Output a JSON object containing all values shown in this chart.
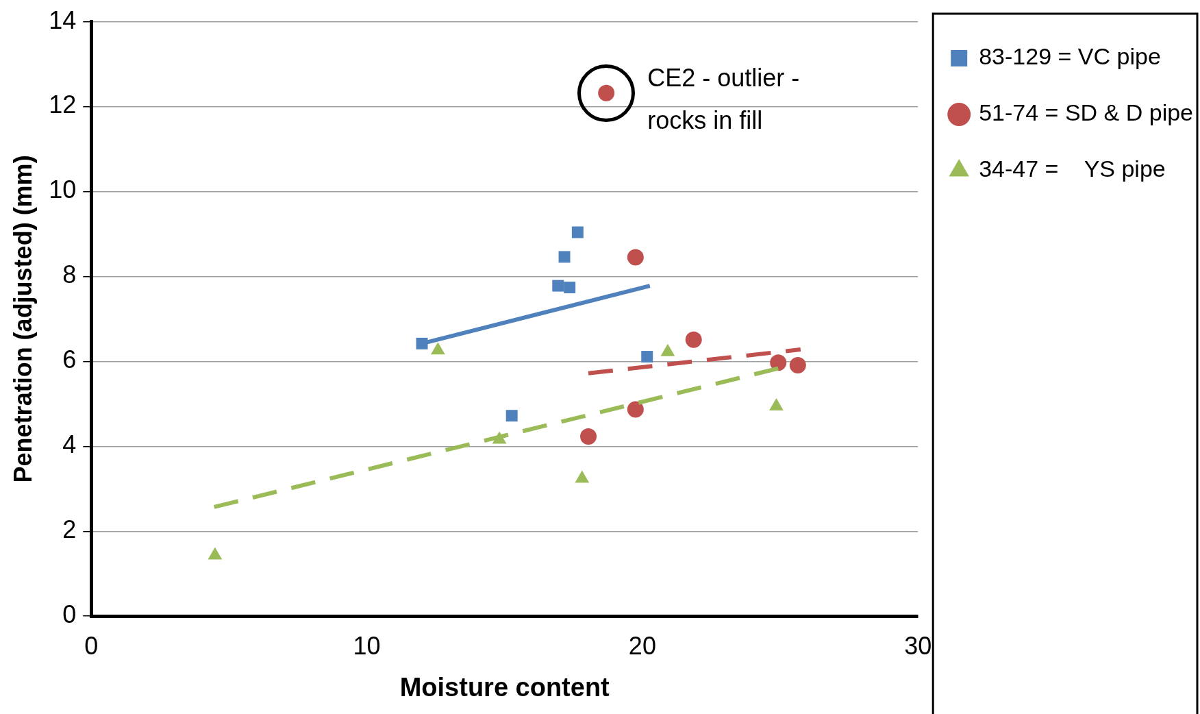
{
  "chart_data": {
    "type": "scatter",
    "xlabel": "Moisture content",
    "ylabel": "Penetration (adjusted) (mm)",
    "xlim": [
      0,
      30
    ],
    "xticks": [
      0,
      10,
      20,
      30
    ],
    "ylim": [
      0,
      14
    ],
    "yticks": [
      0,
      2,
      4,
      6,
      8,
      10,
      12,
      14
    ],
    "grid": "y",
    "legend": "right",
    "annotations": [
      {
        "text": "CE2 - outlier - rocks in fill",
        "x": 18.69,
        "y": 12.32
      }
    ],
    "series": [
      {
        "name": "83-129 = VC pipe",
        "color": "#4f81bd",
        "marker": "square",
        "x": [
          12.0,
          15.26,
          16.94,
          17.17,
          17.36,
          17.65,
          20.17
        ],
        "values": [
          6.42,
          4.72,
          7.78,
          8.46,
          7.74,
          9.04,
          6.11
        ]
      },
      {
        "name": "51-74 = SD & D pipe",
        "color": "#c0504d",
        "marker": "circle",
        "x": [
          18.69,
          19.75,
          21.86,
          19.75,
          18.04,
          24.93,
          25.64
        ],
        "values": [
          12.32,
          8.45,
          6.51,
          4.87,
          4.23,
          5.97,
          5.91
        ]
      },
      {
        "name": "34-47 =    YS pipe",
        "color": "#9bbb59",
        "marker": "triangle",
        "x": [
          12.58,
          14.81,
          17.81,
          20.92,
          24.86,
          4.49
        ],
        "values": [
          6.26,
          4.16,
          3.24,
          6.22,
          4.94,
          1.43
        ]
      },
      {
        "type": "line",
        "color": "#4f81bd",
        "marker": "none",
        "line_style": "solid",
        "x": [
          12.0,
          20.27
        ],
        "values": [
          6.42,
          7.78
        ]
      },
      {
        "type": "line",
        "color": "#c0504d",
        "marker": "none",
        "line_style": "dashed",
        "x": [
          18.04,
          25.74
        ],
        "values": [
          5.72,
          6.28
        ]
      },
      {
        "type": "line",
        "color": "#9bbb59",
        "marker": "none",
        "line_style": "dashed",
        "x": [
          4.46,
          25.09
        ],
        "values": [
          2.57,
          5.86
        ]
      }
    ]
  }
}
